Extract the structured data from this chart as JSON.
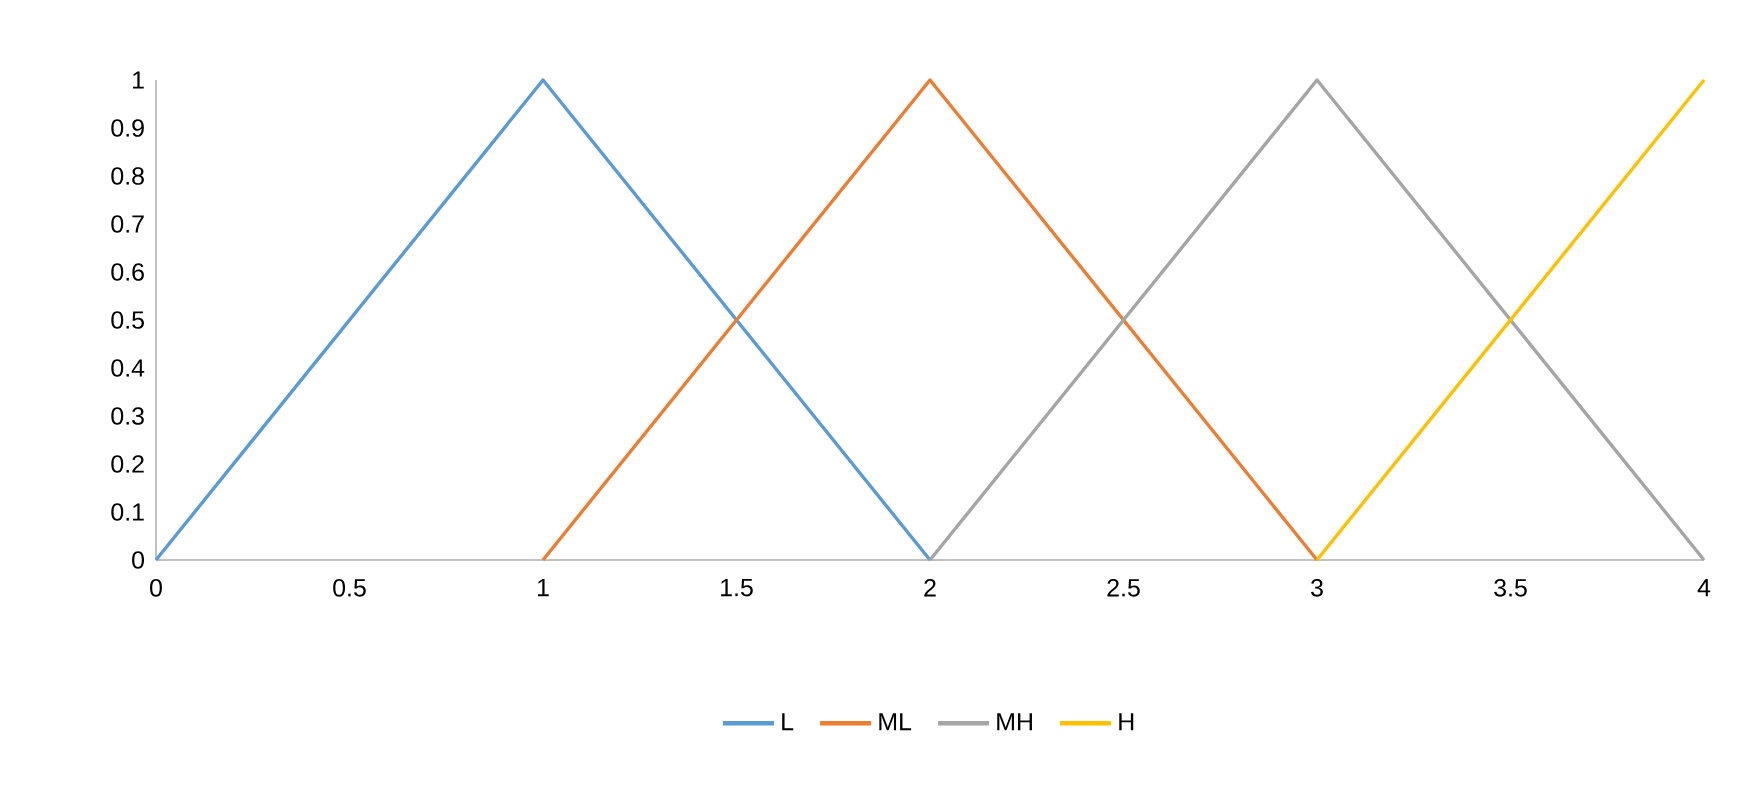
{
  "chart_data": {
    "type": "line",
    "xlim": [
      0,
      4
    ],
    "ylim": [
      0,
      1
    ],
    "xticks": [
      0,
      0.5,
      1,
      1.5,
      2,
      2.5,
      3,
      3.5,
      4
    ],
    "yticks": [
      0,
      0.1,
      0.2,
      0.3,
      0.4,
      0.5,
      0.6,
      0.7,
      0.8,
      0.9,
      1
    ],
    "grid": false,
    "legend": "bottom",
    "marker": "none",
    "line_style": "solid",
    "series": [
      {
        "name": "L",
        "color": "#5b9bd5",
        "x": [
          0,
          1,
          2
        ],
        "values": [
          0,
          1,
          0
        ]
      },
      {
        "name": "ML",
        "color": "#ed7d31",
        "x": [
          1,
          2,
          3
        ],
        "values": [
          0,
          1,
          0
        ]
      },
      {
        "name": "MH",
        "color": "#a5a5a5",
        "x": [
          2,
          3,
          4
        ],
        "values": [
          0,
          1,
          0
        ]
      },
      {
        "name": "H",
        "color": "#ffc000",
        "x": [
          3,
          4
        ],
        "values": [
          0,
          1
        ]
      }
    ]
  }
}
